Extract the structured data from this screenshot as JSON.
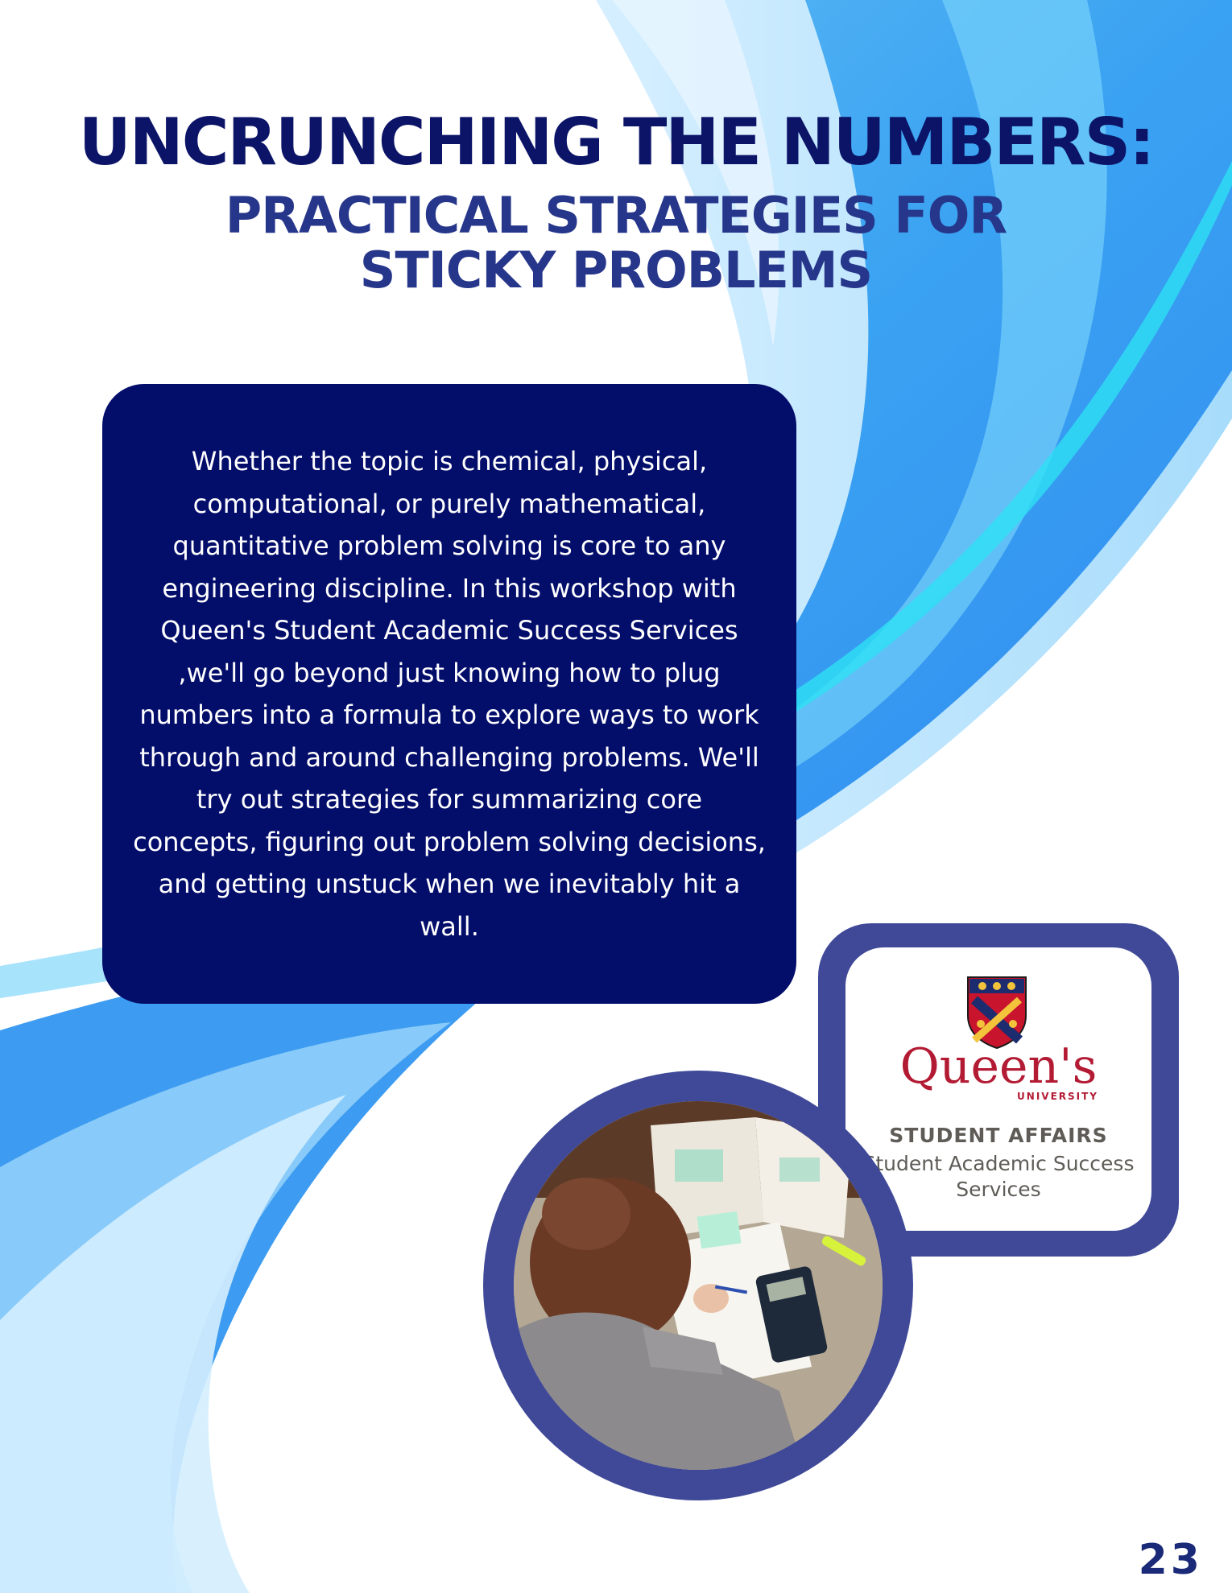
{
  "header": {
    "title": "UNCRUNCHING THE NUMBERS:",
    "subtitle": "PRACTICAL STRATEGIES FOR STICKY PROBLEMS"
  },
  "description": "Whether the topic is chemical, physical, computational, or purely mathematical, quantitative problem solving is core to any engineering discipline. In this workshop with Queen's Student Academic Success Services ,we'll go beyond just knowing how to plug numbers into a formula to explore ways to work through and around challenging problems. We'll try out strategies for summarizing core concepts, figuring out problem solving decisions, and getting unstuck when we inevitably hit a wall.",
  "logo": {
    "wordmark": "Queen's",
    "university": "UNIVERSITY",
    "affairs": "STUDENT AFFAIRS",
    "department": "Student Academic Success Services"
  },
  "photo": {
    "icon": "student-studying-photo"
  },
  "page_number": "23",
  "colors": {
    "title": "#0b1467",
    "subtitle": "#26368a",
    "box": "#030d6a",
    "frame": "#3f4998",
    "accent_red": "#b31b34"
  }
}
